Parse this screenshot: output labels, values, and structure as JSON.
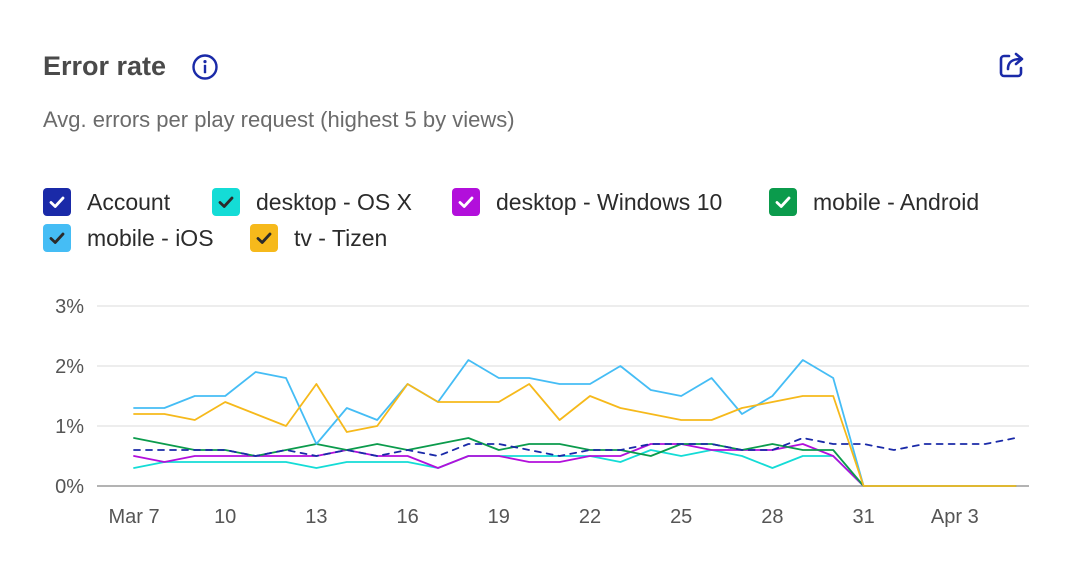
{
  "header": {
    "title": "Error rate",
    "subtitle": "Avg. errors per play request (highest 5 by views)"
  },
  "icons": {
    "info": "info-icon",
    "share": "share-icon"
  },
  "legend": [
    {
      "label": "Account",
      "color": "#1a2aa8",
      "checked": true
    },
    {
      "label": "desktop - OS X",
      "color": "#14dcd6",
      "checked": true
    },
    {
      "label": "desktop - Windows 10",
      "color": "#b20fdb",
      "checked": true
    },
    {
      "label": "mobile - Android",
      "color": "#0b9b4c",
      "checked": true
    },
    {
      "label": "mobile - iOS",
      "color": "#45bdf5",
      "checked": true
    },
    {
      "label": "tv - Tizen",
      "color": "#f6b91b",
      "checked": true
    }
  ],
  "chart_data": {
    "type": "line",
    "title": "Error rate",
    "subtitle": "Avg. errors per play request (highest 5 by views)",
    "x": [
      "Mar 7",
      "Mar 8",
      "Mar 9",
      "Mar 10",
      "Mar 11",
      "Mar 12",
      "Mar 13",
      "Mar 14",
      "Mar 15",
      "Mar 16",
      "Mar 17",
      "Mar 18",
      "Mar 19",
      "Mar 20",
      "Mar 21",
      "Mar 22",
      "Mar 23",
      "Mar 24",
      "Mar 25",
      "Mar 26",
      "Mar 27",
      "Mar 28",
      "Mar 29",
      "Mar 30",
      "Mar 31",
      "Apr 1",
      "Apr 2",
      "Apr 3",
      "Apr 4",
      "Apr 5"
    ],
    "x_tick_labels": [
      "Mar 7",
      "10",
      "13",
      "16",
      "19",
      "22",
      "25",
      "28",
      "31",
      "Apr 3"
    ],
    "y_ticks": [
      "0%",
      "1%",
      "2%",
      "3%"
    ],
    "ylim": [
      0,
      3
    ],
    "y_unit": "%",
    "grid": true,
    "legend_position": "top",
    "series": [
      {
        "name": "Account",
        "color": "#1a2aa8",
        "dashed": true,
        "values": [
          0.6,
          0.6,
          0.6,
          0.6,
          0.5,
          0.6,
          0.5,
          0.6,
          0.5,
          0.6,
          0.5,
          0.7,
          0.7,
          0.6,
          0.5,
          0.6,
          0.6,
          0.7,
          0.7,
          0.7,
          0.6,
          0.6,
          0.8,
          0.7,
          0.7,
          0.6,
          0.7,
          0.7,
          0.7,
          0.8
        ]
      },
      {
        "name": "desktop - OS X",
        "color": "#14dcd6",
        "dashed": false,
        "values": [
          0.3,
          0.4,
          0.4,
          0.4,
          0.4,
          0.4,
          0.3,
          0.4,
          0.4,
          0.4,
          0.3,
          0.5,
          0.5,
          0.5,
          0.5,
          0.5,
          0.4,
          0.6,
          0.5,
          0.6,
          0.5,
          0.3,
          0.5,
          0.5,
          0.0,
          0.0,
          0.0,
          0.0,
          0.0,
          0.0
        ]
      },
      {
        "name": "desktop - Windows 10",
        "color": "#b20fdb",
        "dashed": false,
        "values": [
          0.5,
          0.4,
          0.5,
          0.5,
          0.5,
          0.5,
          0.5,
          0.6,
          0.5,
          0.5,
          0.3,
          0.5,
          0.5,
          0.4,
          0.4,
          0.5,
          0.5,
          0.7,
          0.7,
          0.6,
          0.6,
          0.6,
          0.7,
          0.5,
          0.0,
          0.0,
          0.0,
          0.0,
          0.0,
          0.0
        ]
      },
      {
        "name": "mobile - Android",
        "color": "#0b9b4c",
        "dashed": false,
        "values": [
          0.8,
          0.7,
          0.6,
          0.6,
          0.5,
          0.6,
          0.7,
          0.6,
          0.7,
          0.6,
          0.7,
          0.8,
          0.6,
          0.7,
          0.7,
          0.6,
          0.6,
          0.5,
          0.7,
          0.7,
          0.6,
          0.7,
          0.6,
          0.6,
          0.0,
          0.0,
          0.0,
          0.0,
          0.0,
          0.0
        ]
      },
      {
        "name": "mobile - iOS",
        "color": "#45bdf5",
        "dashed": false,
        "values": [
          1.3,
          1.3,
          1.5,
          1.5,
          1.9,
          1.8,
          0.7,
          1.3,
          1.1,
          1.7,
          1.4,
          2.1,
          1.8,
          1.8,
          1.7,
          1.7,
          2.0,
          1.6,
          1.5,
          1.8,
          1.2,
          1.5,
          2.1,
          1.8,
          0.0,
          0.0,
          0.0,
          0.0,
          0.0,
          0.0
        ]
      },
      {
        "name": "tv - Tizen",
        "color": "#f6b91b",
        "dashed": false,
        "values": [
          1.2,
          1.2,
          1.1,
          1.4,
          1.2,
          1.0,
          1.7,
          0.9,
          1.0,
          1.7,
          1.4,
          1.4,
          1.4,
          1.7,
          1.1,
          1.5,
          1.3,
          1.2,
          1.1,
          1.1,
          1.3,
          1.4,
          1.5,
          1.5,
          0.0,
          0.0,
          0.0,
          0.0,
          0.0,
          0.0
        ]
      }
    ]
  }
}
